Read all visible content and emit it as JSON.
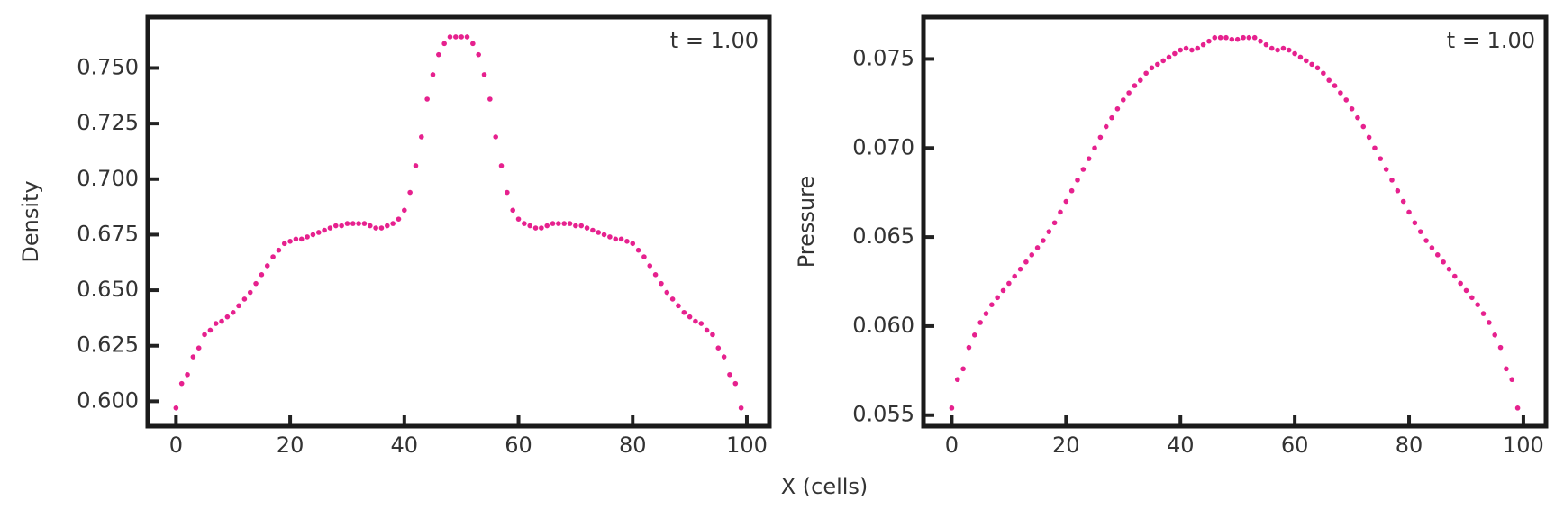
{
  "xlabel": "X (cells)",
  "chart_data": [
    {
      "type": "scatter",
      "ylabel": "Density",
      "annotation": "t = 1.00",
      "color": "#e6218e",
      "x": [
        0,
        1,
        2,
        3,
        4,
        5,
        6,
        7,
        8,
        9,
        10,
        11,
        12,
        13,
        14,
        15,
        16,
        17,
        18,
        19,
        20,
        21,
        22,
        23,
        24,
        25,
        26,
        27,
        28,
        29,
        30,
        31,
        32,
        33,
        34,
        35,
        36,
        37,
        38,
        39,
        40,
        41,
        42,
        43,
        44,
        45,
        46,
        47,
        48,
        49,
        50,
        51,
        52,
        53,
        54,
        55,
        56,
        57,
        58,
        59,
        60,
        61,
        62,
        63,
        64,
        65,
        66,
        67,
        68,
        69,
        70,
        71,
        72,
        73,
        74,
        75,
        76,
        77,
        78,
        79,
        80,
        81,
        82,
        83,
        84,
        85,
        86,
        87,
        88,
        89,
        90,
        91,
        92,
        93,
        94,
        95,
        96,
        97,
        98,
        99
      ],
      "values": [
        0.597,
        0.608,
        0.612,
        0.62,
        0.624,
        0.63,
        0.632,
        0.635,
        0.636,
        0.638,
        0.64,
        0.643,
        0.646,
        0.649,
        0.653,
        0.657,
        0.661,
        0.665,
        0.668,
        0.671,
        0.672,
        0.673,
        0.673,
        0.674,
        0.675,
        0.676,
        0.677,
        0.678,
        0.679,
        0.679,
        0.68,
        0.68,
        0.68,
        0.68,
        0.679,
        0.678,
        0.678,
        0.679,
        0.68,
        0.682,
        0.686,
        0.694,
        0.706,
        0.719,
        0.736,
        0.747,
        0.756,
        0.761,
        0.764,
        0.764,
        0.764,
        0.764,
        0.761,
        0.756,
        0.747,
        0.736,
        0.719,
        0.706,
        0.694,
        0.686,
        0.682,
        0.68,
        0.679,
        0.678,
        0.678,
        0.679,
        0.68,
        0.68,
        0.68,
        0.68,
        0.679,
        0.679,
        0.678,
        0.677,
        0.676,
        0.675,
        0.674,
        0.673,
        0.673,
        0.672,
        0.671,
        0.668,
        0.665,
        0.661,
        0.657,
        0.653,
        0.649,
        0.646,
        0.643,
        0.64,
        0.638,
        0.636,
        0.635,
        0.632,
        0.63,
        0.624,
        0.62,
        0.612,
        0.608,
        0.597
      ],
      "xlim": [
        -4.95,
        103.95
      ],
      "xticks": [
        0,
        20,
        40,
        60,
        80,
        100
      ],
      "ylim": [
        0.5888,
        0.7729
      ],
      "yticks": [
        {
          "value": 0.6,
          "label": "0.600"
        },
        {
          "value": 0.625,
          "label": "0.625"
        },
        {
          "value": 0.65,
          "label": "0.650"
        },
        {
          "value": 0.675,
          "label": "0.675"
        },
        {
          "value": 0.7,
          "label": "0.700"
        },
        {
          "value": 0.725,
          "label": "0.725"
        },
        {
          "value": 0.75,
          "label": "0.750"
        }
      ]
    },
    {
      "type": "scatter",
      "ylabel": "Pressure",
      "annotation": "t = 1.00",
      "color": "#e6218e",
      "x": [
        0,
        1,
        2,
        3,
        4,
        5,
        6,
        7,
        8,
        9,
        10,
        11,
        12,
        13,
        14,
        15,
        16,
        17,
        18,
        19,
        20,
        21,
        22,
        23,
        24,
        25,
        26,
        27,
        28,
        29,
        30,
        31,
        32,
        33,
        34,
        35,
        36,
        37,
        38,
        39,
        40,
        41,
        42,
        43,
        44,
        45,
        46,
        47,
        48,
        49,
        50,
        51,
        52,
        53,
        54,
        55,
        56,
        57,
        58,
        59,
        60,
        61,
        62,
        63,
        64,
        65,
        66,
        67,
        68,
        69,
        70,
        71,
        72,
        73,
        74,
        75,
        76,
        77,
        78,
        79,
        80,
        81,
        82,
        83,
        84,
        85,
        86,
        87,
        88,
        89,
        90,
        91,
        92,
        93,
        94,
        95,
        96,
        97,
        98,
        99
      ],
      "values": [
        0.0554,
        0.057,
        0.0576,
        0.0588,
        0.0595,
        0.0602,
        0.0607,
        0.0612,
        0.0616,
        0.062,
        0.0624,
        0.0628,
        0.0632,
        0.0636,
        0.064,
        0.0644,
        0.0648,
        0.0653,
        0.0658,
        0.0664,
        0.067,
        0.0676,
        0.0682,
        0.0688,
        0.0694,
        0.07,
        0.0706,
        0.0712,
        0.0717,
        0.0722,
        0.0727,
        0.0731,
        0.0735,
        0.0738,
        0.0742,
        0.0745,
        0.0747,
        0.0749,
        0.0751,
        0.0753,
        0.0755,
        0.0756,
        0.0755,
        0.0756,
        0.0758,
        0.076,
        0.0762,
        0.0762,
        0.0762,
        0.0761,
        0.0761,
        0.0762,
        0.0762,
        0.0762,
        0.076,
        0.0758,
        0.0756,
        0.0755,
        0.0756,
        0.0755,
        0.0753,
        0.0751,
        0.0749,
        0.0747,
        0.0745,
        0.0742,
        0.0738,
        0.0735,
        0.0731,
        0.0727,
        0.0722,
        0.0717,
        0.0712,
        0.0706,
        0.07,
        0.0694,
        0.0688,
        0.0682,
        0.0676,
        0.067,
        0.0664,
        0.0658,
        0.0653,
        0.0648,
        0.0644,
        0.064,
        0.0636,
        0.0632,
        0.0628,
        0.0624,
        0.062,
        0.0616,
        0.0612,
        0.0607,
        0.0602,
        0.0595,
        0.0588,
        0.0576,
        0.057,
        0.0554
      ],
      "xlim": [
        -4.95,
        103.95
      ],
      "xticks": [
        0,
        20,
        40,
        60,
        80,
        100
      ],
      "ylim": [
        0.05438,
        0.07735
      ],
      "yticks": [
        {
          "value": 0.055,
          "label": "0.055"
        },
        {
          "value": 0.06,
          "label": "0.060"
        },
        {
          "value": 0.065,
          "label": "0.065"
        },
        {
          "value": 0.07,
          "label": "0.070"
        },
        {
          "value": 0.075,
          "label": "0.075"
        }
      ]
    }
  ]
}
